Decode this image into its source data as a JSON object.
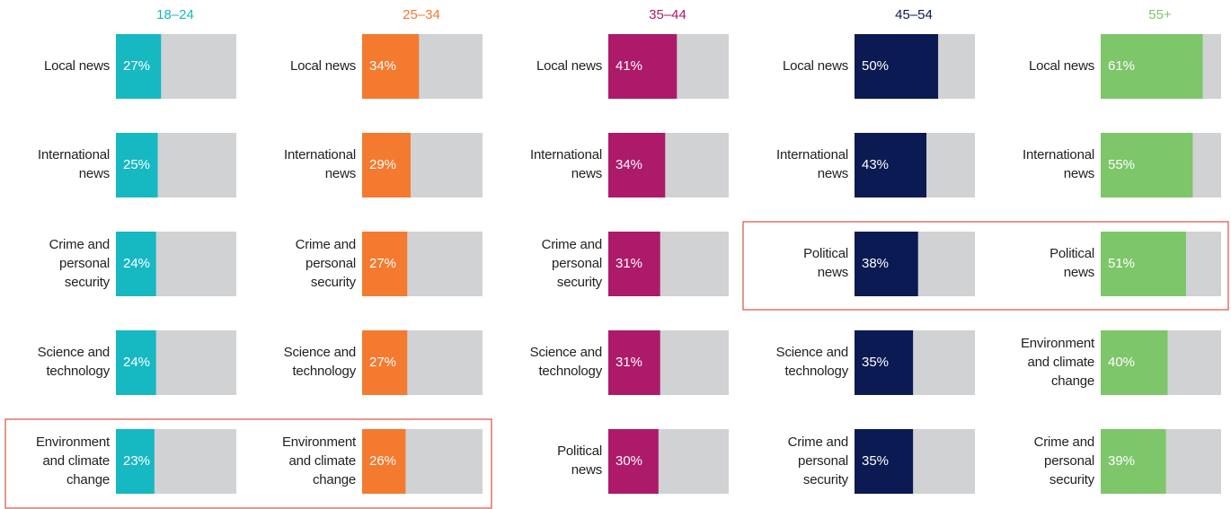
{
  "chart_data": [
    {
      "type": "bar",
      "orientation": "horizontal",
      "title": "18–24",
      "color": "#16b8c2",
      "xlim": [
        0,
        72
      ],
      "categories": [
        "Local news",
        "International news",
        "Crime and personal security",
        "Science and technology",
        "Environment and climate change"
      ],
      "values": [
        27,
        25,
        24,
        24,
        23
      ],
      "value_labels": [
        "27%",
        "25%",
        "24%",
        "24%",
        "23%"
      ]
    },
    {
      "type": "bar",
      "orientation": "horizontal",
      "title": "25–34",
      "color": "#f47a2f",
      "xlim": [
        0,
        72
      ],
      "categories": [
        "Local news",
        "International news",
        "Crime and personal security",
        "Science and technology",
        "Environment and climate change"
      ],
      "values": [
        34,
        29,
        27,
        27,
        26
      ],
      "value_labels": [
        "34%",
        "29%",
        "27%",
        "27%",
        "26%"
      ]
    },
    {
      "type": "bar",
      "orientation": "horizontal",
      "title": "35–44",
      "color": "#ad1a69",
      "xlim": [
        0,
        72
      ],
      "categories": [
        "Local news",
        "International news",
        "Crime and personal security",
        "Science and technology",
        "Political news"
      ],
      "values": [
        41,
        34,
        31,
        31,
        30
      ],
      "value_labels": [
        "41%",
        "34%",
        "31%",
        "31%",
        "30%"
      ]
    },
    {
      "type": "bar",
      "orientation": "horizontal",
      "title": "45–54",
      "color": "#0b1a52",
      "xlim": [
        0,
        72
      ],
      "categories": [
        "Local news",
        "International news",
        "Political news",
        "Science and technology",
        "Crime and personal security"
      ],
      "values": [
        50,
        43,
        38,
        35,
        35
      ],
      "value_labels": [
        "50%",
        "43%",
        "38%",
        "35%",
        "35%"
      ]
    },
    {
      "type": "bar",
      "orientation": "horizontal",
      "title": "55+",
      "color": "#7dc66a",
      "xlim": [
        0,
        72
      ],
      "categories": [
        "Local news",
        "International news",
        "Political news",
        "Environment and climate change",
        "Crime and personal security"
      ],
      "values": [
        61,
        55,
        51,
        40,
        39
      ],
      "value_labels": [
        "61%",
        "55%",
        "51%",
        "40%",
        "39%"
      ]
    }
  ]
}
